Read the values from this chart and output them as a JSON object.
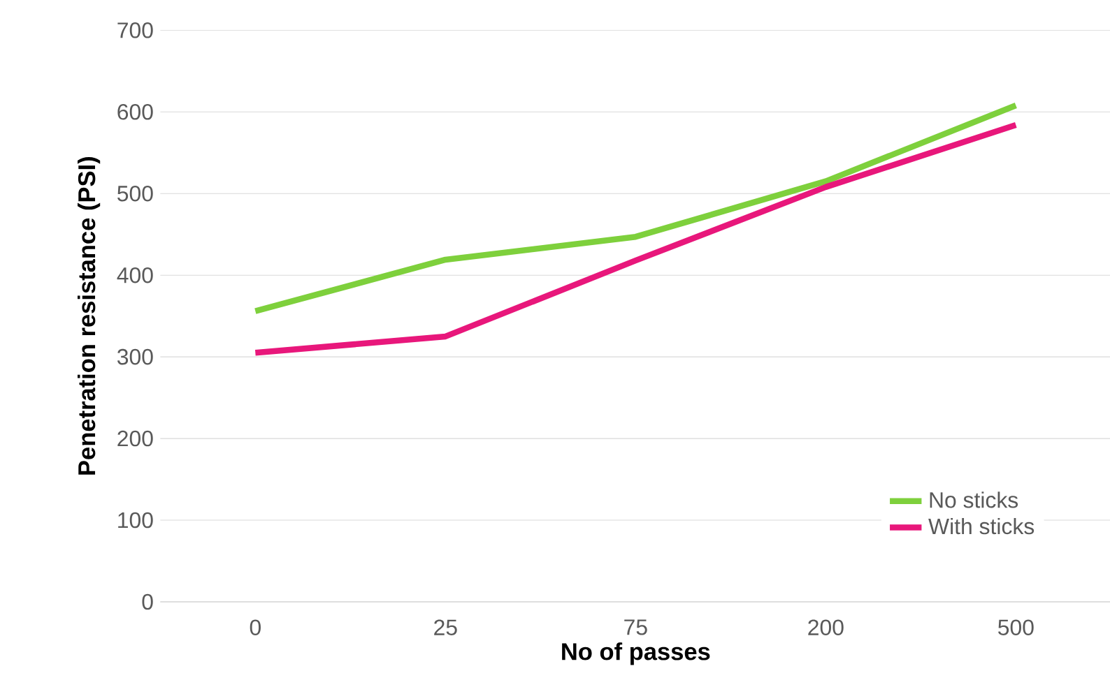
{
  "chart_data": {
    "type": "line",
    "xlabel": "No of passes",
    "ylabel": "Penetration resistance (PSI)",
    "categories": [
      "0",
      "25",
      "75",
      "200",
      "500"
    ],
    "series": [
      {
        "name": "No sticks",
        "color": "#7ed03c",
        "values": [
          356,
          419,
          447,
          515,
          608
        ]
      },
      {
        "name": "With sticks",
        "color": "#e8177b",
        "values": [
          305,
          325,
          418,
          508,
          584
        ]
      }
    ],
    "ylim": [
      0,
      700
    ],
    "yticks": [
      0,
      100,
      200,
      300,
      400,
      500,
      600,
      700
    ],
    "grid": "y",
    "legend": "bottom right",
    "marker": "none",
    "line_style": "solid"
  }
}
